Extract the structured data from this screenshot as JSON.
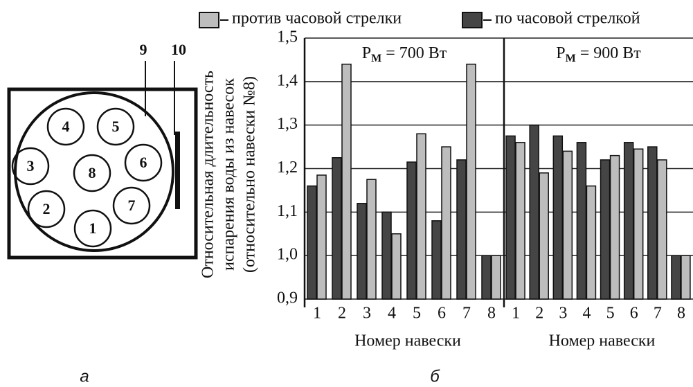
{
  "diagram": {
    "circles": [
      "1",
      "2",
      "3",
      "4",
      "5",
      "6",
      "7",
      "8"
    ],
    "callouts": [
      "9",
      "10"
    ]
  },
  "panel_labels": [
    "а",
    "б"
  ],
  "chart_data": [
    {
      "type": "bar",
      "title": "PМ = 700 Вт",
      "y_label": [
        "Относительная длительность",
        "испарения воды из навесок",
        "(относительно навески №8)"
      ],
      "x_label": "Номер навески",
      "categories": [
        "1",
        "2",
        "3",
        "4",
        "5",
        "6",
        "7",
        "8"
      ],
      "series": [
        {
          "name": "по часовой стрелкой",
          "color": "#454545",
          "values": [
            1.16,
            1.225,
            1.12,
            1.1,
            1.215,
            1.08,
            1.22,
            1.0
          ]
        },
        {
          "name": "против часовой стрелки",
          "color": "#bdbdbd",
          "values": [
            1.185,
            1.44,
            1.175,
            1.05,
            1.28,
            1.25,
            1.44,
            1.0
          ]
        }
      ],
      "ylim": [
        0.9,
        1.5
      ],
      "yticks": [
        {
          "value": 0.9,
          "label": "0,9"
        },
        {
          "value": 1.0,
          "label": "1,0"
        },
        {
          "value": 1.1,
          "label": "1,1"
        },
        {
          "value": 1.2,
          "label": "1,2"
        },
        {
          "value": 1.3,
          "label": "1,3"
        },
        {
          "value": 1.4,
          "label": "1,4"
        },
        {
          "value": 1.5,
          "label": "1,5"
        }
      ],
      "grid": true
    },
    {
      "type": "bar",
      "title": "PМ = 900 Вт",
      "x_label": "Номер навески",
      "categories": [
        "1",
        "2",
        "3",
        "4",
        "5",
        "6",
        "7",
        "8"
      ],
      "series": [
        {
          "color": "#454545",
          "values": [
            1.275,
            1.3,
            1.275,
            1.26,
            1.22,
            1.26,
            1.25,
            1.0
          ]
        },
        {
          "color": "#bdbdbd",
          "values": [
            1.26,
            1.19,
            1.24,
            1.16,
            1.23,
            1.245,
            1.22,
            1.0
          ]
        }
      ],
      "ylim": [
        0.9,
        1.5
      ],
      "grid": true
    }
  ]
}
